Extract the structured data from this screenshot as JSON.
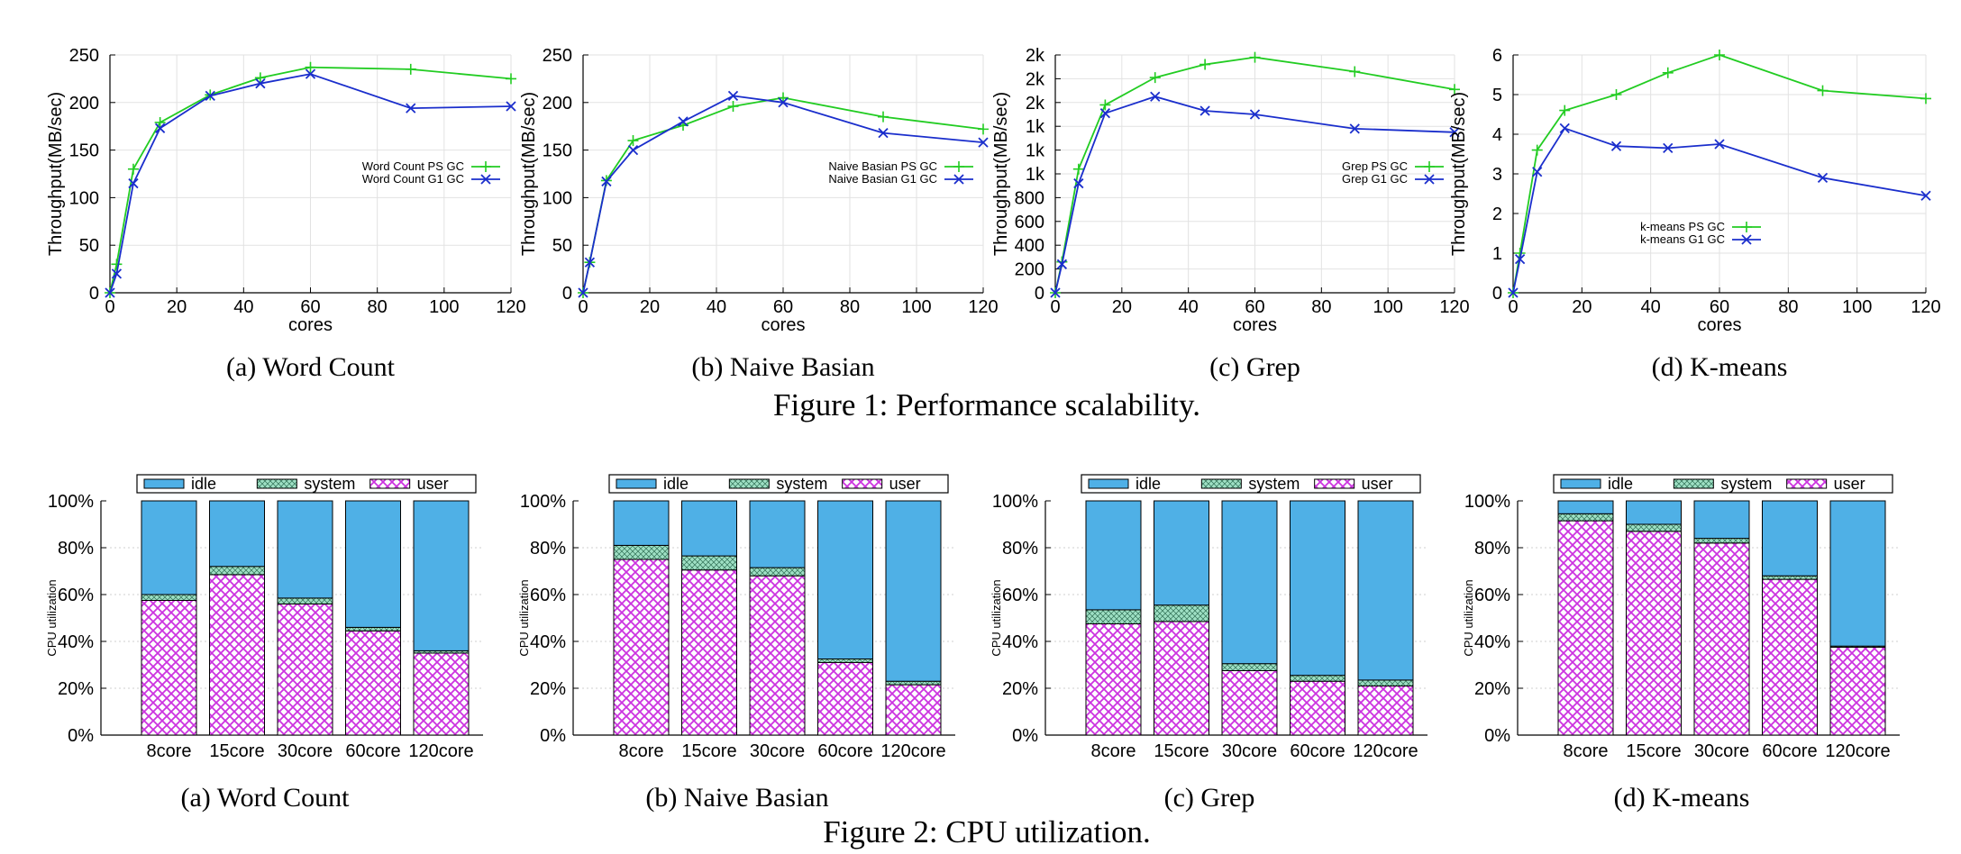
{
  "figure1": {
    "caption": "Figure 1: Performance scalability.",
    "colors": {
      "ps": "#22cc22",
      "g1": "#1a2ecc"
    },
    "charts": [
      {
        "subcaption": "(a) Word Count",
        "chart_data": {
          "type": "line",
          "xlabel": "cores",
          "ylabel": "Throughput(MB/sec)",
          "xlim": [
            0,
            120
          ],
          "ylim": [
            0,
            250
          ],
          "xticks": [
            "0",
            "20",
            "40",
            "60",
            "80",
            "100",
            "120"
          ],
          "yticks": [
            0,
            50,
            100,
            150,
            200,
            250
          ],
          "ytick_labels": [
            "0",
            "50",
            "100",
            "150",
            "200",
            "250"
          ],
          "legend_position": "right-middle",
          "series": [
            {
              "name": "Word Count PS GC",
              "x": [
                0,
                2,
                7,
                15,
                30,
                45,
                60,
                90,
                120
              ],
              "y": [
                0,
                30,
                130,
                179,
                208,
                226,
                237,
                235,
                225
              ]
            },
            {
              "name": "Word Count G1 GC",
              "x": [
                0,
                2,
                7,
                15,
                30,
                45,
                60,
                90,
                120
              ],
              "y": [
                0,
                20,
                115,
                173,
                207,
                220,
                230,
                194,
                196
              ]
            }
          ]
        }
      },
      {
        "subcaption": "(b) Naive Basian",
        "chart_data": {
          "type": "line",
          "xlabel": "cores",
          "ylabel": "Throughput(MB/sec)",
          "xlim": [
            0,
            120
          ],
          "ylim": [
            0,
            250
          ],
          "xticks": [
            "0",
            "20",
            "40",
            "60",
            "80",
            "100",
            "120"
          ],
          "yticks": [
            0,
            50,
            100,
            150,
            200,
            250
          ],
          "ytick_labels": [
            "0",
            "50",
            "100",
            "150",
            "200",
            "250"
          ],
          "legend_position": "right-middle",
          "series": [
            {
              "name": "Naive Basian PS GC",
              "x": [
                0,
                2,
                7,
                15,
                30,
                45,
                60,
                90,
                120
              ],
              "y": [
                0,
                32,
                118,
                160,
                176,
                196,
                205,
                185,
                172
              ]
            },
            {
              "name": "Naive Basian G1 GC",
              "x": [
                0,
                2,
                7,
                15,
                30,
                45,
                60,
                90,
                120
              ],
              "y": [
                0,
                32,
                117,
                150,
                180,
                207,
                200,
                168,
                158
              ]
            }
          ]
        }
      },
      {
        "subcaption": "(c) Grep",
        "chart_data": {
          "type": "line",
          "xlabel": "cores",
          "ylabel": "Throughput(MB/sec)",
          "xlim": [
            0,
            120
          ],
          "ylim": [
            0,
            2000
          ],
          "xticks": [
            "0",
            "20",
            "40",
            "60",
            "80",
            "100",
            "120"
          ],
          "yticks": [
            0,
            200,
            400,
            600,
            800,
            1000,
            1200,
            1400,
            1600,
            1800,
            2000
          ],
          "ytick_labels": [
            "0",
            "200",
            "400",
            "600",
            "800",
            "1k",
            "1k",
            "1k",
            "2k",
            "2k",
            "2k"
          ],
          "legend_position": "right-middle",
          "series": [
            {
              "name": "Grep PS GC",
              "x": [
                0,
                2,
                7,
                15,
                30,
                45,
                60,
                90,
                120
              ],
              "y": [
                0,
                260,
                1040,
                1580,
                1810,
                1920,
                1980,
                1860,
                1710
              ]
            },
            {
              "name": "Grep G1 GC",
              "x": [
                0,
                2,
                7,
                15,
                30,
                45,
                60,
                90,
                120
              ],
              "y": [
                0,
                240,
                920,
                1510,
                1650,
                1530,
                1500,
                1380,
                1350
              ]
            }
          ]
        }
      },
      {
        "subcaption": "(d) K-means",
        "chart_data": {
          "type": "line",
          "xlabel": "cores",
          "ylabel": "Throughput(MB/sec)",
          "xlim": [
            0,
            120
          ],
          "ylim": [
            0,
            6
          ],
          "xticks": [
            "0",
            "20",
            "40",
            "60",
            "80",
            "100",
            "120"
          ],
          "yticks": [
            0,
            1,
            2,
            3,
            4,
            5,
            6
          ],
          "ytick_labels": [
            "0",
            "1",
            "2",
            "3",
            "4",
            "5",
            "6"
          ],
          "legend_position": "center-bottom",
          "series": [
            {
              "name": "k-means PS GC",
              "x": [
                0,
                2,
                7,
                15,
                30,
                45,
                60,
                90,
                120
              ],
              "y": [
                0,
                1.0,
                3.6,
                4.6,
                5.0,
                5.55,
                6.0,
                5.1,
                4.9
              ]
            },
            {
              "name": "k-means G1 GC",
              "x": [
                0,
                2,
                7,
                15,
                30,
                45,
                60,
                90,
                120
              ],
              "y": [
                0,
                0.85,
                3.05,
                4.15,
                3.7,
                3.65,
                3.75,
                2.9,
                2.45
              ]
            }
          ]
        }
      }
    ]
  },
  "figure2": {
    "caption": "Figure 2: CPU utilization.",
    "colors": {
      "idle": "#4fb0e6",
      "system": "#9ee0c4",
      "user": "#cc33e0"
    },
    "charts": [
      {
        "subcaption": "(a) Word Count",
        "chart_data": {
          "type": "bar",
          "stacked": true,
          "ylabel": "CPU utilization",
          "ylim": [
            0,
            100
          ],
          "yticks": [
            "0%",
            "20%",
            "40%",
            "60%",
            "80%",
            "100%"
          ],
          "categories": [
            "8core",
            "15core",
            "30core",
            "60core",
            "120core"
          ],
          "legend_position": "top",
          "series": [
            {
              "name": "idle",
              "values": [
                40,
                28,
                41.5,
                54,
                64
              ]
            },
            {
              "name": "system",
              "values": [
                2.5,
                3.5,
                2.5,
                1.5,
                1
              ]
            },
            {
              "name": "user",
              "values": [
                57.5,
                68.5,
                56,
                44.5,
                35
              ]
            }
          ]
        }
      },
      {
        "subcaption": "(b) Naive Basian",
        "chart_data": {
          "type": "bar",
          "stacked": true,
          "ylabel": "CPU utilization",
          "ylim": [
            0,
            100
          ],
          "yticks": [
            "0%",
            "20%",
            "40%",
            "60%",
            "80%",
            "100%"
          ],
          "categories": [
            "8core",
            "15core",
            "30core",
            "60core",
            "120core"
          ],
          "legend_position": "top",
          "series": [
            {
              "name": "idle",
              "values": [
                19,
                23.5,
                28.5,
                67.5,
                77
              ]
            },
            {
              "name": "system",
              "values": [
                6,
                6,
                3.5,
                1.5,
                1.5
              ]
            },
            {
              "name": "user",
              "values": [
                75,
                70.5,
                68,
                31,
                21.5
              ]
            }
          ]
        }
      },
      {
        "subcaption": "(c) Grep",
        "chart_data": {
          "type": "bar",
          "stacked": true,
          "ylabel": "CPU utilization",
          "ylim": [
            0,
            100
          ],
          "yticks": [
            "0%",
            "20%",
            "40%",
            "60%",
            "80%",
            "100%"
          ],
          "categories": [
            "8core",
            "15core",
            "30core",
            "60core",
            "120core"
          ],
          "legend_position": "top",
          "series": [
            {
              "name": "idle",
              "values": [
                46.5,
                44.5,
                69.5,
                74.5,
                76.5
              ]
            },
            {
              "name": "system",
              "values": [
                6,
                7,
                3,
                2.5,
                2.5
              ]
            },
            {
              "name": "user",
              "values": [
                47.5,
                48.5,
                27.5,
                23,
                21
              ]
            }
          ]
        }
      },
      {
        "subcaption": "(d) K-means",
        "chart_data": {
          "type": "bar",
          "stacked": true,
          "ylabel": "CPU utilization",
          "ylim": [
            0,
            100
          ],
          "yticks": [
            "0%",
            "20%",
            "40%",
            "60%",
            "80%",
            "100%"
          ],
          "categories": [
            "8core",
            "15core",
            "30core",
            "60core",
            "120core"
          ],
          "legend_position": "top",
          "series": [
            {
              "name": "idle",
              "values": [
                5.5,
                10,
                16,
                32,
                62
              ]
            },
            {
              "name": "system",
              "values": [
                3,
                3,
                2,
                1.5,
                0.5
              ]
            },
            {
              "name": "user",
              "values": [
                91.5,
                87,
                82,
                66.5,
                37.5
              ]
            }
          ]
        }
      }
    ]
  }
}
